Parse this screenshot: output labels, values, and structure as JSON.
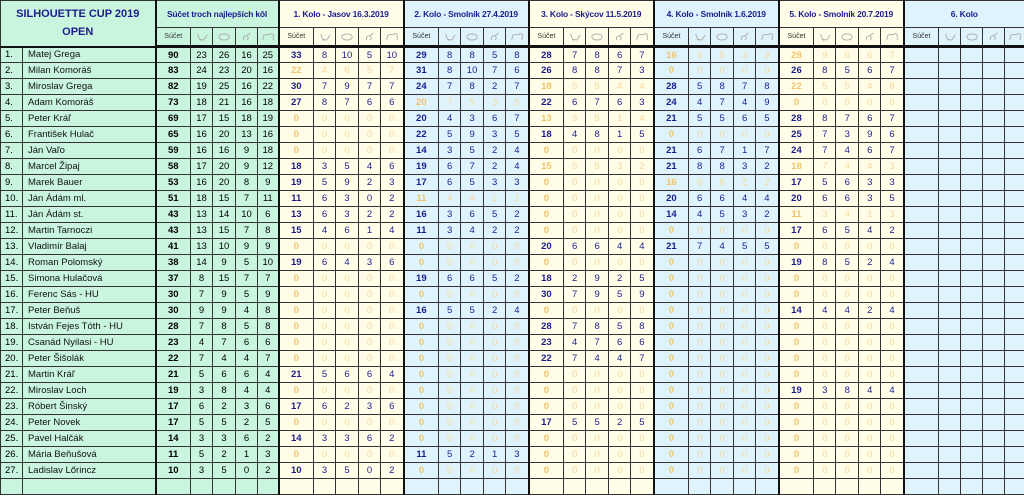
{
  "header": {
    "title": "SILHOUETTE CUP 2019",
    "subtitle": "OPEN",
    "best_label": "Súčet troch najlepších kôl",
    "sum_label": "Súčet"
  },
  "rounds": [
    {
      "label": "1. Kolo  -  Jasov  16.3.2019"
    },
    {
      "label": "2. Kolo - Smolník 27.4.2019"
    },
    {
      "label": "3. Kolo - Skýcov 11.5.2019"
    },
    {
      "label": "4. Kolo - Smolník 1.6.2019"
    },
    {
      "label": "5. Kolo - Smolník 20.7.2019"
    },
    {
      "label": "6. Kolo"
    }
  ],
  "category_icons": [
    "chicken-icon",
    "pig-icon",
    "turkey-icon",
    "ram-icon"
  ],
  "colors": {
    "summary_bg": "#c9f5df",
    "round_odd_bg": "#fffde8",
    "round_even_bg": "#dff3fc",
    "header_text": "#1c1c8c",
    "dropped_text": "#f2c46a"
  },
  "rows": [
    {
      "rank": "1.",
      "name": "Matej Grega",
      "total": [
        90,
        23,
        26,
        16,
        25
      ],
      "rounds": [
        [
          33,
          8,
          10,
          5,
          10
        ],
        [
          29,
          8,
          8,
          5,
          8
        ],
        [
          28,
          7,
          8,
          6,
          7
        ],
        [
          16,
          5,
          5,
          3,
          3
        ],
        [
          28,
          9,
          6,
          6,
          7
        ]
      ],
      "dropped": [
        3,
        4
      ]
    },
    {
      "rank": "2.",
      "name": "Milan Komoráš",
      "total": [
        83,
        24,
        23,
        20,
        16
      ],
      "rounds": [
        [
          22,
          4,
          6,
          5,
          7
        ],
        [
          31,
          8,
          10,
          7,
          6
        ],
        [
          26,
          8,
          8,
          7,
          3
        ],
        [
          0,
          0,
          0,
          0,
          0
        ],
        [
          26,
          8,
          5,
          6,
          7
        ]
      ],
      "dropped": [
        0,
        3
      ]
    },
    {
      "rank": "3.",
      "name": "Miroslav Grega",
      "total": [
        82,
        19,
        25,
        16,
        22
      ],
      "rounds": [
        [
          30,
          7,
          9,
          7,
          7
        ],
        [
          24,
          7,
          8,
          2,
          7
        ],
        [
          18,
          5,
          5,
          4,
          4
        ],
        [
          28,
          5,
          8,
          7,
          8
        ],
        [
          22,
          5,
          5,
          4,
          8
        ]
      ],
      "dropped": [
        2,
        4
      ]
    },
    {
      "rank": "4.",
      "name": "Adam Komoráš",
      "total": [
        73,
        18,
        21,
        16,
        18
      ],
      "rounds": [
        [
          27,
          8,
          7,
          6,
          6
        ],
        [
          20,
          7,
          5,
          3,
          5
        ],
        [
          22,
          6,
          7,
          6,
          3
        ],
        [
          24,
          4,
          7,
          4,
          9
        ],
        [
          0,
          0,
          0,
          0,
          0
        ]
      ],
      "dropped": [
        1,
        4
      ]
    },
    {
      "rank": "5.",
      "name": "Peter Kráľ",
      "total": [
        69,
        17,
        15,
        18,
        19
      ],
      "rounds": [
        [
          0,
          0,
          0,
          0,
          0
        ],
        [
          20,
          4,
          3,
          6,
          7
        ],
        [
          13,
          3,
          5,
          1,
          4
        ],
        [
          21,
          5,
          5,
          6,
          5
        ],
        [
          28,
          8,
          7,
          6,
          7
        ]
      ],
      "dropped": [
        0,
        2
      ]
    },
    {
      "rank": "6.",
      "name": "František Hulač",
      "total": [
        65,
        16,
        20,
        13,
        16
      ],
      "rounds": [
        [
          0,
          0,
          0,
          0,
          0
        ],
        [
          22,
          5,
          9,
          3,
          5
        ],
        [
          18,
          4,
          8,
          1,
          5
        ],
        [
          0,
          0,
          0,
          0,
          0
        ],
        [
          25,
          7,
          3,
          9,
          6
        ]
      ],
      "dropped": [
        0,
        3
      ]
    },
    {
      "rank": "7.",
      "name": "Ján Vaľo",
      "total": [
        59,
        16,
        16,
        9,
        18
      ],
      "rounds": [
        [
          0,
          0,
          0,
          0,
          0
        ],
        [
          14,
          3,
          5,
          2,
          4
        ],
        [
          0,
          0,
          0,
          0,
          0
        ],
        [
          21,
          6,
          7,
          1,
          7
        ],
        [
          24,
          7,
          4,
          6,
          7
        ]
      ],
      "dropped": [
        0,
        2
      ]
    },
    {
      "rank": "8.",
      "name": "Marcel Žipaj",
      "total": [
        58,
        17,
        20,
        9,
        12
      ],
      "rounds": [
        [
          18,
          3,
          5,
          4,
          6
        ],
        [
          19,
          6,
          7,
          2,
          4
        ],
        [
          15,
          5,
          5,
          3,
          2
        ],
        [
          21,
          8,
          8,
          3,
          2
        ],
        [
          18,
          7,
          4,
          4,
          3
        ]
      ],
      "dropped": [
        2,
        4
      ]
    },
    {
      "rank": "9.",
      "name": "Marek Bauer",
      "total": [
        53,
        16,
        20,
        8,
        9
      ],
      "rounds": [
        [
          19,
          5,
          9,
          2,
          3
        ],
        [
          17,
          6,
          5,
          3,
          3
        ],
        [
          0,
          0,
          0,
          0,
          0
        ],
        [
          16,
          6,
          6,
          2,
          2
        ],
        [
          17,
          5,
          6,
          3,
          3
        ]
      ],
      "dropped": [
        2,
        3
      ]
    },
    {
      "rank": "10.",
      "name": "Ján Ádám  ml.",
      "total": [
        51,
        18,
        15,
        7,
        11
      ],
      "rounds": [
        [
          11,
          6,
          3,
          0,
          2
        ],
        [
          11,
          4,
          4,
          2,
          1
        ],
        [
          0,
          0,
          0,
          0,
          0
        ],
        [
          20,
          6,
          6,
          4,
          4
        ],
        [
          20,
          6,
          6,
          3,
          5
        ]
      ],
      "dropped": [
        1,
        2
      ]
    },
    {
      "rank": "11.",
      "name": "Ján Ádám  st.",
      "total": [
        43,
        13,
        14,
        10,
        6
      ],
      "rounds": [
        [
          13,
          6,
          3,
          2,
          2
        ],
        [
          16,
          3,
          6,
          5,
          2
        ],
        [
          0,
          0,
          0,
          0,
          0
        ],
        [
          14,
          4,
          5,
          3,
          2
        ],
        [
          11,
          3,
          4,
          1,
          3
        ]
      ],
      "dropped": [
        2,
        4
      ]
    },
    {
      "rank": "12.",
      "name": "Martin Tarnoczi",
      "total": [
        43,
        13,
        15,
        7,
        8
      ],
      "rounds": [
        [
          15,
          4,
          6,
          1,
          4
        ],
        [
          11,
          3,
          4,
          2,
          2
        ],
        [
          0,
          0,
          0,
          0,
          0
        ],
        [
          0,
          0,
          0,
          0,
          0
        ],
        [
          17,
          6,
          5,
          4,
          2
        ]
      ],
      "dropped": [
        2,
        3
      ]
    },
    {
      "rank": "13.",
      "name": "Vladimír Balaj",
      "total": [
        41,
        13,
        10,
        9,
        9
      ],
      "rounds": [
        [
          0,
          0,
          0,
          0,
          0
        ],
        [
          0,
          0,
          0,
          0,
          0
        ],
        [
          20,
          6,
          6,
          4,
          4
        ],
        [
          21,
          7,
          4,
          5,
          5
        ],
        [
          0,
          0,
          0,
          0,
          0
        ]
      ],
      "dropped": [
        0,
        1,
        4
      ]
    },
    {
      "rank": "14.",
      "name": "Roman Polomský",
      "total": [
        38,
        14,
        9,
        5,
        10
      ],
      "rounds": [
        [
          19,
          6,
          4,
          3,
          6
        ],
        [
          0,
          0,
          0,
          0,
          0
        ],
        [
          0,
          0,
          0,
          0,
          0
        ],
        [
          0,
          0,
          0,
          0,
          0
        ],
        [
          19,
          8,
          5,
          2,
          4
        ]
      ],
      "dropped": [
        1,
        2,
        3
      ]
    },
    {
      "rank": "15.",
      "name": "Simona Hulačová",
      "total": [
        37,
        8,
        15,
        7,
        7
      ],
      "rounds": [
        [
          0,
          0,
          0,
          0,
          0
        ],
        [
          19,
          6,
          6,
          5,
          2
        ],
        [
          18,
          2,
          9,
          2,
          5
        ],
        [
          0,
          0,
          0,
          0,
          0
        ],
        [
          0,
          0,
          0,
          0,
          0
        ]
      ],
      "dropped": [
        0,
        3,
        4
      ]
    },
    {
      "rank": "16.",
      "name": "Ferenc Sás   -   HU",
      "total": [
        30,
        7,
        9,
        5,
        9
      ],
      "rounds": [
        [
          0,
          0,
          0,
          0,
          0
        ],
        [
          0,
          0,
          0,
          0,
          0
        ],
        [
          30,
          7,
          9,
          5,
          9
        ],
        [
          0,
          0,
          0,
          0,
          0
        ],
        [
          0,
          0,
          0,
          0,
          0
        ]
      ],
      "dropped": [
        0,
        1,
        3,
        4
      ]
    },
    {
      "rank": "17.",
      "name": "Peter Beňuš",
      "total": [
        30,
        9,
        9,
        4,
        8
      ],
      "rounds": [
        [
          0,
          0,
          0,
          0,
          0
        ],
        [
          16,
          5,
          5,
          2,
          4
        ],
        [
          0,
          0,
          0,
          0,
          0
        ],
        [
          0,
          0,
          0,
          0,
          0
        ],
        [
          14,
          4,
          4,
          2,
          4
        ]
      ],
      "dropped": [
        0,
        2,
        3
      ]
    },
    {
      "rank": "18.",
      "name": "István Fejes Tóth   -  HU",
      "total": [
        28,
        7,
        8,
        5,
        8
      ],
      "rounds": [
        [
          0,
          0,
          0,
          0,
          0
        ],
        [
          0,
          0,
          0,
          0,
          0
        ],
        [
          28,
          7,
          8,
          5,
          8
        ],
        [
          0,
          0,
          0,
          0,
          0
        ],
        [
          0,
          0,
          0,
          0,
          0
        ]
      ],
      "dropped": [
        0,
        1,
        3,
        4
      ]
    },
    {
      "rank": "19.",
      "name": "Csanád Nyilasi   -  HU",
      "total": [
        23,
        4,
        7,
        6,
        6
      ],
      "rounds": [
        [
          0,
          0,
          0,
          0,
          0
        ],
        [
          0,
          0,
          0,
          0,
          0
        ],
        [
          23,
          4,
          7,
          6,
          6
        ],
        [
          0,
          0,
          0,
          0,
          0
        ],
        [
          0,
          0,
          0,
          0,
          0
        ]
      ],
      "dropped": [
        0,
        1,
        3,
        4
      ]
    },
    {
      "rank": "20.",
      "name": "Peter Šišolák",
      "total": [
        22,
        7,
        4,
        4,
        7
      ],
      "rounds": [
        [
          0,
          0,
          0,
          0,
          0
        ],
        [
          0,
          0,
          0,
          0,
          0
        ],
        [
          22,
          7,
          4,
          4,
          7
        ],
        [
          0,
          0,
          0,
          0,
          0
        ],
        [
          0,
          0,
          0,
          0,
          0
        ]
      ],
      "dropped": [
        0,
        1,
        3,
        4
      ]
    },
    {
      "rank": "21.",
      "name": "Martin Kráľ",
      "total": [
        21,
        5,
        6,
        6,
        4
      ],
      "rounds": [
        [
          21,
          5,
          6,
          6,
          4
        ],
        [
          0,
          0,
          0,
          0,
          0
        ],
        [
          0,
          0,
          0,
          0,
          0
        ],
        [
          0,
          0,
          0,
          0,
          0
        ],
        [
          0,
          0,
          0,
          0,
          0
        ]
      ],
      "dropped": [
        1,
        2,
        3,
        4
      ]
    },
    {
      "rank": "22.",
      "name": "Miroslav Loch",
      "total": [
        19,
        3,
        8,
        4,
        4
      ],
      "rounds": [
        [
          0,
          0,
          0,
          0,
          0
        ],
        [
          0,
          0,
          0,
          0,
          0
        ],
        [
          0,
          0,
          0,
          0,
          0
        ],
        [
          0,
          0,
          0,
          0,
          0
        ],
        [
          19,
          3,
          8,
          4,
          4
        ]
      ],
      "dropped": [
        0,
        1,
        2,
        3
      ]
    },
    {
      "rank": "23.",
      "name": "Róbert Šinský",
      "total": [
        17,
        6,
        2,
        3,
        6
      ],
      "rounds": [
        [
          17,
          6,
          2,
          3,
          6
        ],
        [
          0,
          0,
          0,
          0,
          0
        ],
        [
          0,
          0,
          0,
          0,
          0
        ],
        [
          0,
          0,
          0,
          0,
          0
        ],
        [
          0,
          0,
          0,
          0,
          0
        ]
      ],
      "dropped": [
        1,
        2,
        3,
        4
      ]
    },
    {
      "rank": "24.",
      "name": "Peter Novek",
      "total": [
        17,
        5,
        5,
        2,
        5
      ],
      "rounds": [
        [
          0,
          0,
          0,
          0,
          0
        ],
        [
          0,
          0,
          0,
          0,
          0
        ],
        [
          17,
          5,
          5,
          2,
          5
        ],
        [
          0,
          0,
          0,
          0,
          0
        ],
        [
          0,
          0,
          0,
          0,
          0
        ]
      ],
      "dropped": [
        0,
        1,
        3,
        4
      ]
    },
    {
      "rank": "25.",
      "name": "Pavel Halčák",
      "total": [
        14,
        3,
        3,
        6,
        2
      ],
      "rounds": [
        [
          14,
          3,
          3,
          6,
          2
        ],
        [
          0,
          0,
          0,
          0,
          0
        ],
        [
          0,
          0,
          0,
          0,
          0
        ],
        [
          0,
          0,
          0,
          0,
          0
        ],
        [
          0,
          0,
          0,
          0,
          0
        ]
      ],
      "dropped": [
        1,
        2,
        3,
        4
      ]
    },
    {
      "rank": "26.",
      "name": "Mária Beňušová",
      "total": [
        11,
        5,
        2,
        1,
        3
      ],
      "rounds": [
        [
          0,
          0,
          0,
          0,
          0
        ],
        [
          11,
          5,
          2,
          1,
          3
        ],
        [
          0,
          0,
          0,
          0,
          0
        ],
        [
          0,
          0,
          0,
          0,
          0
        ],
        [
          0,
          0,
          0,
          0,
          0
        ]
      ],
      "dropped": [
        0,
        2,
        3,
        4
      ]
    },
    {
      "rank": "27.",
      "name": "Ladislav Lőrincz",
      "total": [
        10,
        3,
        5,
        0,
        2
      ],
      "rounds": [
        [
          10,
          3,
          5,
          0,
          2
        ],
        [
          0,
          0,
          0,
          0,
          0
        ],
        [
          0,
          0,
          0,
          0,
          0
        ],
        [
          0,
          0,
          0,
          0,
          0
        ],
        [
          0,
          0,
          0,
          0,
          0
        ]
      ],
      "dropped": [
        1,
        2,
        3,
        4
      ]
    }
  ]
}
